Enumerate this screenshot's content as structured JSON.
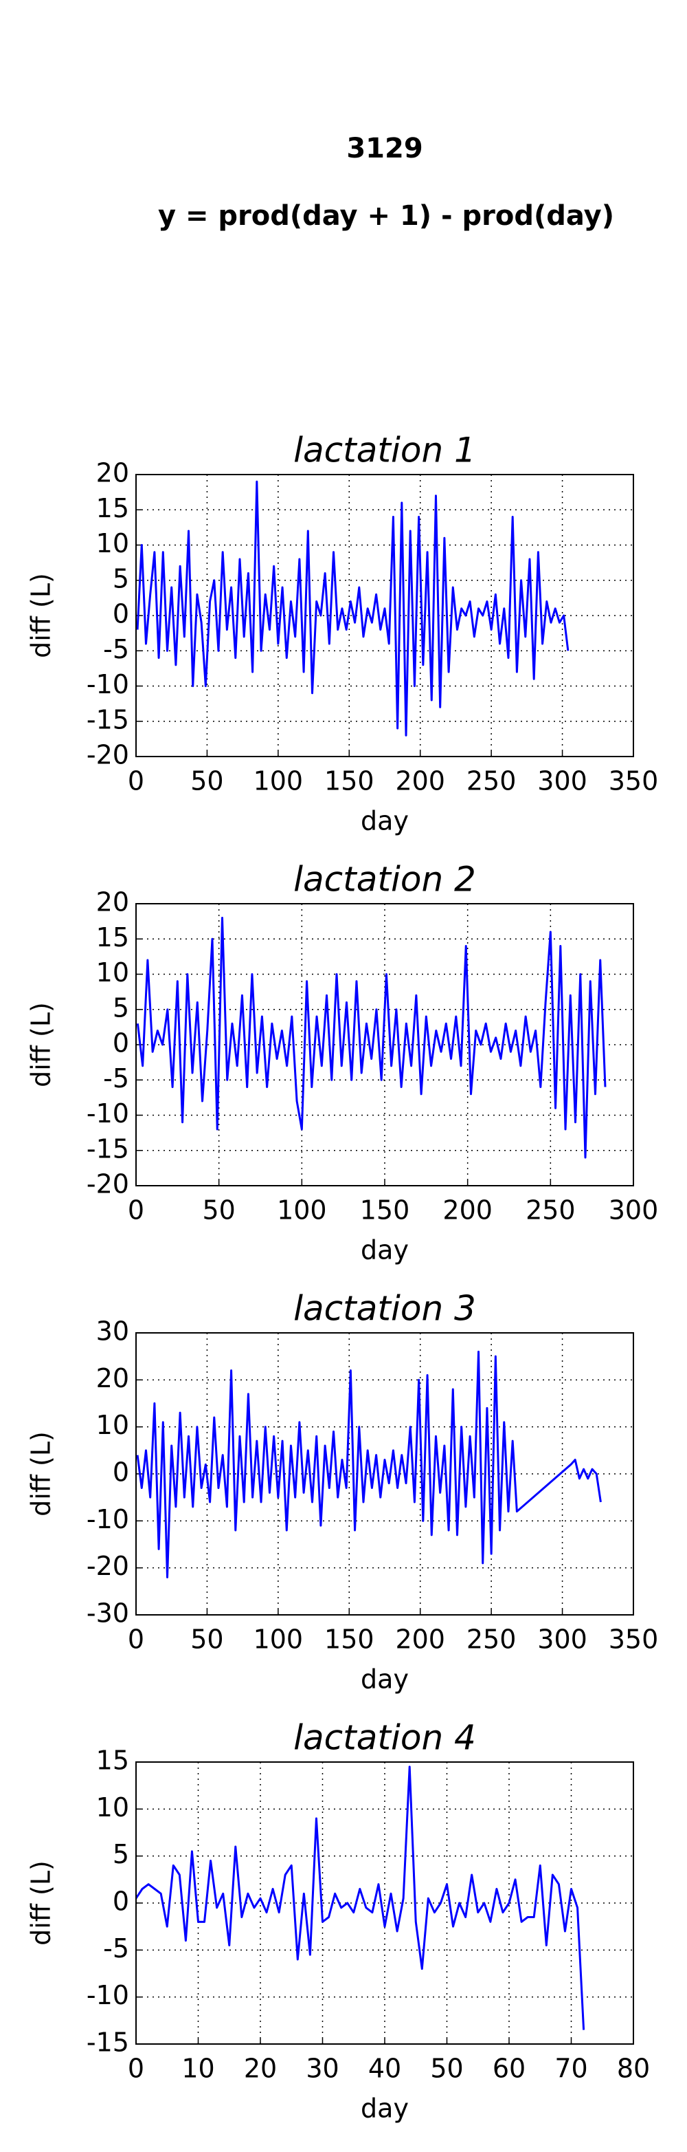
{
  "title": "3129",
  "subtitle": "y = prod(day + 1) - prod(day)",
  "chart_data": [
    {
      "type": "line",
      "title": "lactation 1",
      "xlabel": "day",
      "ylabel": "diff (L)",
      "color": "#0000ff",
      "grid": true,
      "xlim": [
        0,
        350
      ],
      "xticks": [
        0,
        50,
        100,
        150,
        200,
        250,
        300,
        350
      ],
      "ylim": [
        -20,
        20
      ],
      "yticks": [
        -20,
        -15,
        -10,
        -5,
        0,
        5,
        10,
        15,
        20
      ],
      "x": [
        1,
        4,
        7,
        10,
        13,
        16,
        19,
        22,
        25,
        28,
        31,
        34,
        37,
        40,
        43,
        46,
        49,
        52,
        55,
        58,
        61,
        64,
        67,
        70,
        73,
        76,
        79,
        82,
        85,
        88,
        91,
        94,
        97,
        100,
        103,
        106,
        109,
        112,
        115,
        118,
        121,
        124,
        127,
        130,
        133,
        136,
        139,
        142,
        145,
        148,
        151,
        154,
        157,
        160,
        163,
        166,
        169,
        172,
        175,
        178,
        181,
        184,
        187,
        190,
        193,
        196,
        199,
        202,
        205,
        208,
        211,
        214,
        217,
        220,
        223,
        226,
        229,
        232,
        235,
        238,
        241,
        244,
        247,
        250,
        253,
        256,
        259,
        262,
        265,
        268,
        271,
        274,
        277,
        280,
        283,
        286,
        289,
        292,
        295,
        298,
        301,
        304
      ],
      "values": [
        -2,
        10,
        -4,
        3,
        9,
        -6,
        9,
        -5,
        4,
        -7,
        7,
        -3,
        12,
        -10,
        3,
        -1,
        -10,
        2,
        5,
        -5,
        9,
        -2,
        4,
        -6,
        8,
        -3,
        6,
        -8,
        19,
        -5,
        3,
        -2,
        7,
        -4,
        4,
        -6,
        2,
        -3,
        8,
        -8,
        12,
        -11,
        2,
        0,
        6,
        -4,
        9,
        -2,
        1,
        -2,
        2,
        -1,
        4,
        -3,
        1,
        -1,
        3,
        -2,
        1,
        -4,
        14,
        -16,
        16,
        -17,
        12,
        -10,
        14,
        -7,
        9,
        -12,
        17,
        -13,
        11,
        -8,
        4,
        -2,
        1,
        0,
        2,
        -3,
        1,
        0,
        2,
        -2,
        3,
        -4,
        1,
        -6,
        14,
        -8,
        5,
        -3,
        8,
        -9,
        9,
        -4,
        2,
        -1,
        1,
        -1,
        0,
        -5
      ]
    },
    {
      "type": "line",
      "title": "lactation 2",
      "xlabel": "day",
      "ylabel": "diff (L)",
      "color": "#0000ff",
      "grid": true,
      "xlim": [
        0,
        300
      ],
      "xticks": [
        0,
        50,
        100,
        150,
        200,
        250,
        300
      ],
      "ylim": [
        -20,
        20
      ],
      "yticks": [
        -20,
        -15,
        -10,
        -5,
        0,
        5,
        10,
        15,
        20
      ],
      "x": [
        1,
        4,
        7,
        10,
        13,
        16,
        19,
        22,
        25,
        28,
        31,
        34,
        37,
        40,
        43,
        46,
        49,
        52,
        55,
        58,
        61,
        64,
        67,
        70,
        73,
        76,
        79,
        82,
        85,
        88,
        91,
        94,
        97,
        100,
        103,
        106,
        109,
        112,
        115,
        118,
        121,
        124,
        127,
        130,
        133,
        136,
        139,
        142,
        145,
        148,
        151,
        154,
        157,
        160,
        163,
        166,
        169,
        172,
        175,
        178,
        181,
        184,
        187,
        190,
        193,
        196,
        199,
        202,
        205,
        208,
        211,
        214,
        217,
        220,
        223,
        226,
        229,
        232,
        235,
        238,
        241,
        244,
        247,
        250,
        253,
        256,
        259,
        262,
        265,
        268,
        271,
        274,
        277,
        280,
        283
      ],
      "values": [
        3,
        -3,
        12,
        -1,
        2,
        0,
        5,
        -6,
        9,
        -11,
        10,
        -4,
        6,
        -8,
        2,
        15,
        -12,
        18,
        -5,
        3,
        -3,
        7,
        -6,
        10,
        -4,
        4,
        -6,
        3,
        -2,
        2,
        -3,
        4,
        -8,
        -12,
        9,
        -6,
        4,
        -3,
        7,
        -5,
        10,
        -3,
        6,
        -5,
        9,
        -4,
        3,
        -2,
        5,
        -5,
        10,
        -3,
        5,
        -6,
        3,
        -3,
        7,
        -7,
        4,
        -3,
        2,
        -1,
        3,
        -2,
        4,
        -3,
        14,
        -7,
        2,
        0,
        3,
        -1,
        1,
        -2,
        3,
        -1,
        2,
        -3,
        4,
        -1,
        2,
        -6,
        6,
        16,
        -9,
        14,
        -12,
        7,
        -11,
        10,
        -16,
        9,
        -7,
        12,
        -6
      ]
    },
    {
      "type": "line",
      "title": "lactation 3",
      "xlabel": "day",
      "ylabel": "diff (L)",
      "color": "#0000ff",
      "grid": true,
      "xlim": [
        0,
        350
      ],
      "xticks": [
        0,
        50,
        100,
        150,
        200,
        250,
        300,
        350
      ],
      "ylim": [
        -30,
        30
      ],
      "yticks": [
        -30,
        -20,
        -10,
        0,
        10,
        20,
        30
      ],
      "x": [
        1,
        4,
        7,
        10,
        13,
        16,
        19,
        22,
        25,
        28,
        31,
        34,
        37,
        40,
        43,
        46,
        49,
        52,
        55,
        58,
        61,
        64,
        67,
        70,
        73,
        76,
        79,
        82,
        85,
        88,
        91,
        94,
        97,
        100,
        103,
        106,
        109,
        112,
        115,
        118,
        121,
        124,
        127,
        130,
        133,
        136,
        139,
        142,
        145,
        148,
        151,
        154,
        157,
        160,
        163,
        166,
        169,
        172,
        175,
        178,
        181,
        184,
        187,
        190,
        193,
        196,
        199,
        202,
        205,
        208,
        211,
        214,
        217,
        220,
        223,
        226,
        229,
        232,
        235,
        238,
        241,
        244,
        247,
        250,
        253,
        256,
        259,
        262,
        265,
        268,
        306,
        309,
        312,
        315,
        318,
        321,
        324,
        327
      ],
      "values": [
        4,
        -3,
        5,
        -5,
        15,
        -16,
        11,
        -22,
        6,
        -7,
        13,
        -5,
        8,
        -7,
        10,
        -3,
        2,
        -6,
        12,
        -3,
        4,
        -7,
        22,
        -12,
        8,
        -6,
        17,
        -5,
        7,
        -6,
        10,
        -4,
        8,
        -5,
        7,
        -12,
        6,
        -5,
        11,
        -4,
        5,
        -6,
        8,
        -11,
        6,
        -3,
        9,
        -5,
        3,
        -3,
        22,
        -12,
        10,
        -6,
        5,
        -3,
        4,
        -5,
        3,
        -2,
        5,
        -3,
        4,
        -2,
        10,
        -6,
        20,
        -10,
        21,
        -13,
        8,
        -4,
        6,
        -12,
        18,
        -13,
        10,
        -7,
        8,
        -5,
        26,
        -19,
        14,
        -17,
        25,
        -12,
        11,
        -8,
        7,
        -8,
        2,
        3,
        -1,
        1,
        -1,
        1,
        0,
        -6
      ]
    },
    {
      "type": "line",
      "title": "lactation 4",
      "xlabel": "day",
      "ylabel": "diff (L)",
      "color": "#0000ff",
      "grid": true,
      "xlim": [
        0,
        80
      ],
      "xticks": [
        0,
        10,
        20,
        30,
        40,
        50,
        60,
        70,
        80
      ],
      "ylim": [
        -15,
        15
      ],
      "yticks": [
        -15,
        -10,
        -5,
        0,
        5,
        10,
        15
      ],
      "x": [
        0,
        1,
        2,
        3,
        4,
        5,
        6,
        7,
        8,
        9,
        10,
        11,
        12,
        13,
        14,
        15,
        16,
        17,
        18,
        19,
        20,
        21,
        22,
        23,
        24,
        25,
        26,
        27,
        28,
        29,
        30,
        31,
        32,
        33,
        34,
        35,
        36,
        37,
        38,
        39,
        40,
        41,
        42,
        43,
        44,
        45,
        46,
        47,
        48,
        49,
        50,
        51,
        52,
        53,
        54,
        55,
        56,
        57,
        58,
        59,
        60,
        61,
        62,
        63,
        64,
        65,
        66,
        67,
        68,
        69,
        70,
        71,
        72
      ],
      "values": [
        0.5,
        1.5,
        2,
        1.5,
        1,
        -2.5,
        4,
        3,
        -4,
        5.5,
        -2,
        -2,
        4.5,
        -0.5,
        1,
        -4.5,
        6,
        -1.5,
        1,
        -0.5,
        0.5,
        -1,
        1.5,
        -1,
        3,
        4,
        -6,
        1,
        -5.5,
        9,
        -2,
        -1.5,
        1,
        -0.5,
        0,
        -1,
        1.5,
        -0.5,
        -1,
        2,
        -2.5,
        1,
        -3,
        0.5,
        14.5,
        -2,
        -7,
        0.5,
        -1,
        0,
        2,
        -2.5,
        0,
        -1.5,
        3,
        -1,
        0,
        -2,
        1.5,
        -1,
        0,
        2.5,
        -2,
        -1.5,
        -1.5,
        4,
        -4.5,
        3,
        2,
        -3,
        1.5,
        -0.5,
        -13.5
      ]
    }
  ]
}
